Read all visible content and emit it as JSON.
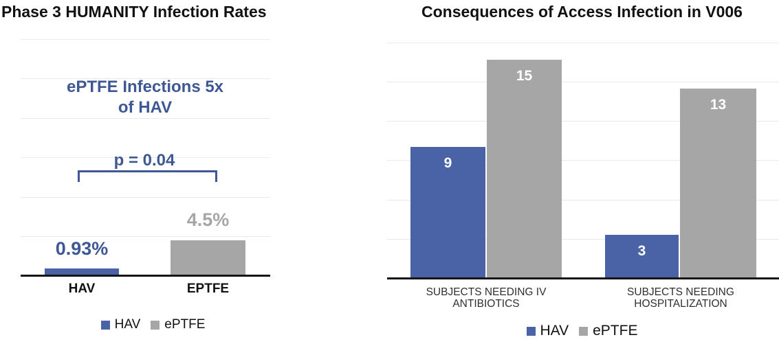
{
  "colors": {
    "hav_blue": "#4A62A6",
    "eptfe_gray": "#A6A6A6",
    "annotation_blue": "#3E5795",
    "axis_black": "#151515",
    "gridline_gray": "#E9E9E9",
    "bar_label_white": "#FFFFFF"
  },
  "chart_data": [
    {
      "type": "bar",
      "title": "Phase 3 HUMANITY Infection Rates",
      "categories": [
        "HAV",
        "EPTFE"
      ],
      "values": [
        0.93,
        4.5
      ],
      "value_labels": [
        "0.93%",
        "4.5%"
      ],
      "unit": "percent",
      "ylim": [
        0,
        30
      ],
      "grid": true,
      "y_axis_labels_visible": false,
      "annotation_line1": "ePTFE Infections 5x",
      "annotation_line2": "of HAV",
      "p_value_label": "p = 0.04",
      "legend": [
        "HAV",
        "ePTFE"
      ],
      "legend_position": "bottom",
      "series_colors": {
        "HAV": "#4A62A6",
        "ePTFE": "#A6A6A6"
      }
    },
    {
      "type": "bar",
      "title": "Consequences of Access Infection in V006",
      "categories": [
        "SUBJECTS NEEDING IV ANTIBIOTICS",
        "SUBJECTS NEEDING HOSPITALIZATION"
      ],
      "category_lines": [
        [
          "SUBJECTS NEEDING IV",
          "ANTIBIOTICS"
        ],
        [
          "SUBJECTS NEEDING",
          "HOSPITALIZATION"
        ]
      ],
      "series": [
        {
          "name": "HAV",
          "values": [
            9,
            3
          ]
        },
        {
          "name": "ePTFE",
          "values": [
            15,
            13
          ]
        }
      ],
      "ylim": [
        0,
        16
      ],
      "grid": true,
      "y_axis_labels_visible": false,
      "legend": [
        "HAV",
        "ePTFE"
      ],
      "legend_position": "bottom",
      "series_colors": {
        "HAV": "#4A62A6",
        "ePTFE": "#A6A6A6"
      }
    }
  ]
}
